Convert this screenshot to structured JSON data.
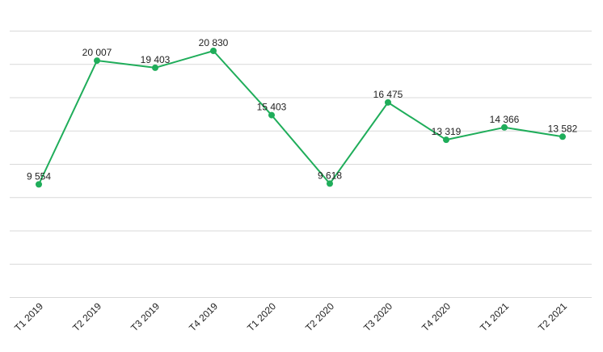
{
  "chart_data": {
    "type": "line",
    "categories": [
      "T1 2019",
      "T2 2019",
      "T3 2019",
      "T4 2019",
      "T1 2020",
      "T2 2020",
      "T3 2020",
      "T4 2020",
      "T1 2021",
      "T2 2021"
    ],
    "series": [
      {
        "values": [
          9554,
          20007,
          19403,
          20830,
          15403,
          9618,
          16475,
          13319,
          14366,
          13582
        ],
        "value_labels": [
          "9 554",
          "20 007",
          "19 403",
          "20 830",
          "15 403",
          "9 618",
          "16 475",
          "13 319",
          "14 366",
          "13 582"
        ],
        "color": "#1fad5a"
      }
    ],
    "title": "",
    "xlabel": "",
    "ylabel": "",
    "ylim": [
      0,
      22500
    ],
    "grid": true,
    "legend": "none"
  }
}
